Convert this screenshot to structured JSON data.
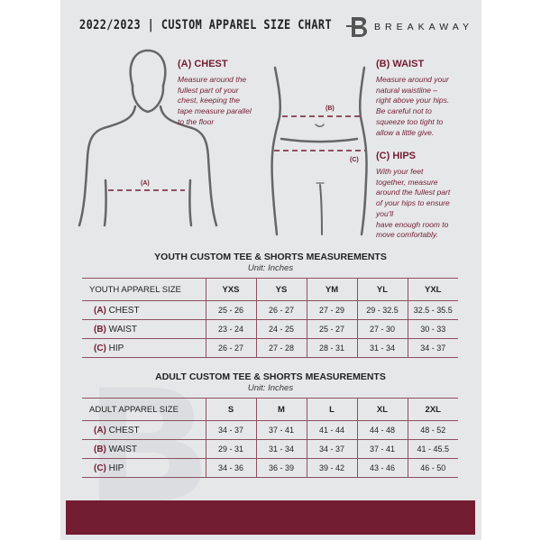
{
  "header": {
    "title": "2022/2023  |  CUSTOM APPAREL SIZE CHART",
    "brand": "BREAKAWAY"
  },
  "guides": {
    "chest": {
      "heading": "(A) CHEST",
      "text": "Measure around the\nfullest part of your\nchest, keeping the\ntape measure parallel\nto the floor",
      "marker": "(A)"
    },
    "waist": {
      "heading": "(B) WAIST",
      "text": "Measure around your\nnatural waistline –\nright above your hips.\nBe careful not to\nsqueeze too tight to\nallow a little give.",
      "marker": "(B)"
    },
    "hips": {
      "heading": "(C) HIPS",
      "text": "With your feet\ntogether, measure\naround the fullest part\nof your hips to ensure\nyou'll\nhave enough room to\nmove comfortably.",
      "marker": "(C)"
    }
  },
  "youth": {
    "title": "YOUTH CUSTOM TEE & SHORTS MEASUREMENTS",
    "unit": "Unit: Inches",
    "header": "YOUTH APPAREL SIZE",
    "sizes": [
      "YXS",
      "YS",
      "YM",
      "YL",
      "YXL"
    ],
    "rows": [
      {
        "key": "(A)",
        "label": "CHEST",
        "values": [
          "25 - 26",
          "26 - 27",
          "27 - 29",
          "29 - 32.5",
          "32.5 - 35.5"
        ]
      },
      {
        "key": "(B)",
        "label": "WAIST",
        "values": [
          "23 - 24",
          "24 - 25",
          "25 - 27",
          "27 - 30",
          "30 - 33"
        ]
      },
      {
        "key": "(C)",
        "label": "HIP",
        "values": [
          "26 - 27",
          "27 - 28",
          "28 - 31",
          "31 - 34",
          "34 - 37"
        ]
      }
    ]
  },
  "adult": {
    "title": "ADULT CUSTOM TEE & SHORTS MEASUREMENTS",
    "unit": "Unit: Inches",
    "header": "ADULT APPAREL SIZE",
    "sizes": [
      "S",
      "M",
      "L",
      "XL",
      "2XL"
    ],
    "rows": [
      {
        "key": "(A)",
        "label": "CHEST",
        "values": [
          "34 - 37",
          "37 - 41",
          "41 - 44",
          "44 - 48",
          "48 - 52"
        ]
      },
      {
        "key": "(B)",
        "label": "WAIST",
        "values": [
          "29 - 31",
          "31 - 34",
          "34 - 37",
          "37 - 41",
          "41 - 45.5"
        ]
      },
      {
        "key": "(C)",
        "label": "HIP",
        "values": [
          "34 - 36",
          "36 - 39",
          "39 - 42",
          "43 - 46",
          "46 - 50"
        ]
      }
    ]
  },
  "colors": {
    "accent": "#731d32",
    "background": "#e6e7e9"
  }
}
